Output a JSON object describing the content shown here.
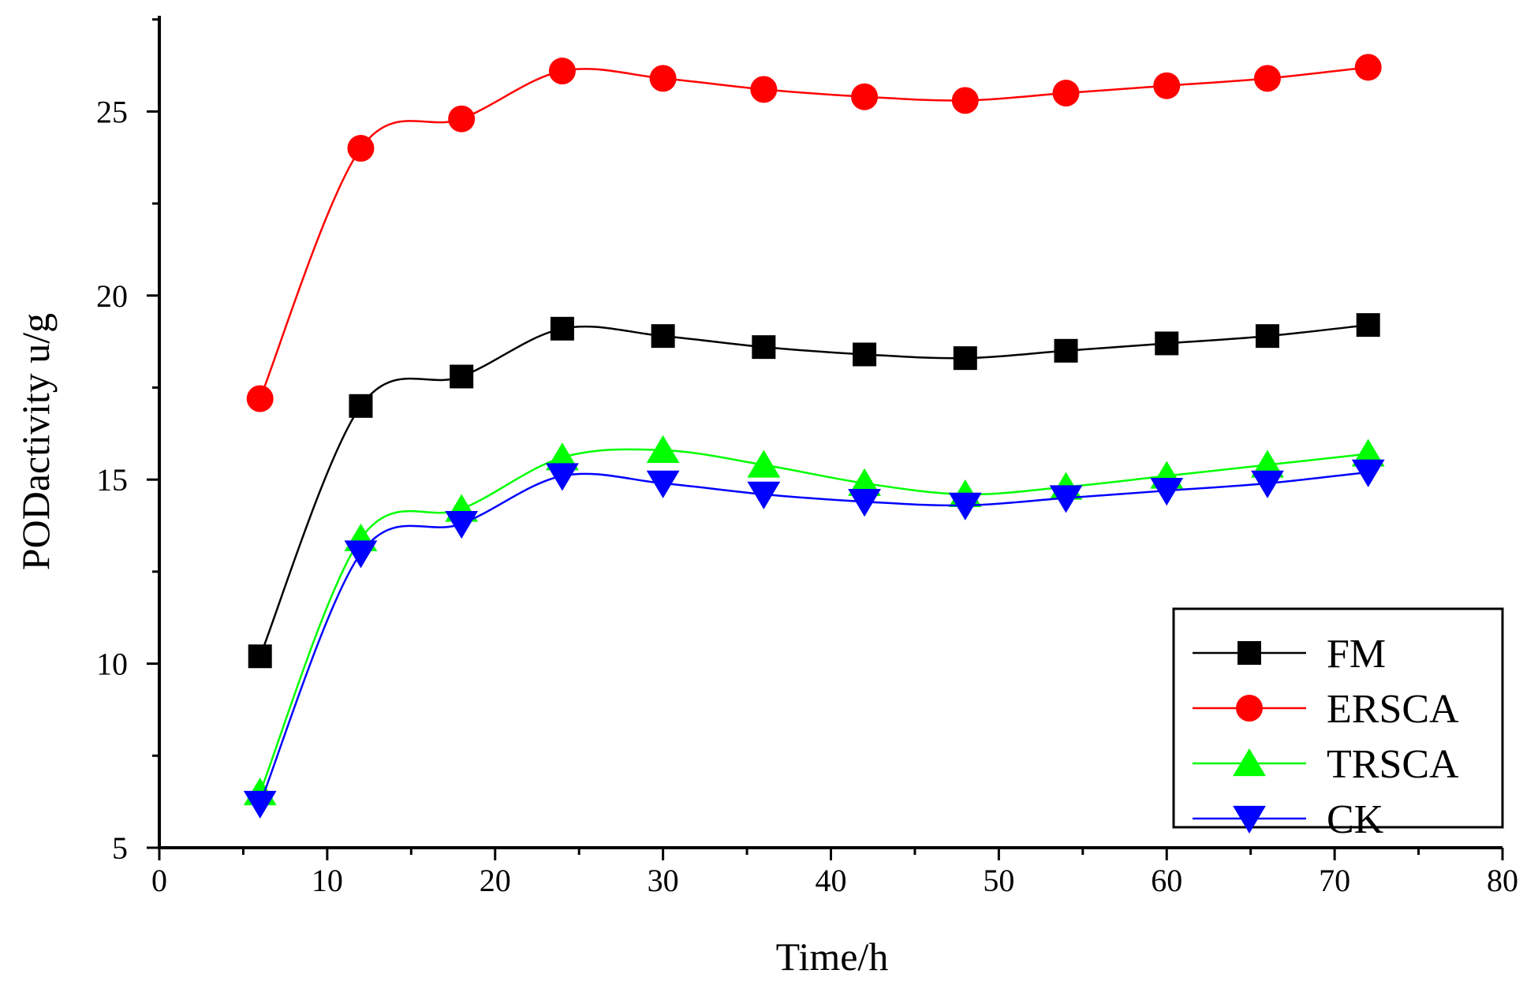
{
  "chart_data": {
    "type": "line",
    "title": "",
    "xlabel": "Time/h",
    "ylabel": "PODactivity u/g",
    "xlim": [
      0,
      80
    ],
    "ylim": [
      5,
      27.6
    ],
    "xticks": [
      "0",
      "10",
      "20",
      "30",
      "40",
      "50",
      "60",
      "70",
      "80"
    ],
    "yticks": [
      "5",
      "10",
      "15",
      "20",
      "25"
    ],
    "grid": false,
    "legend_position": "bottom-right",
    "x": [
      6,
      12,
      18,
      24,
      30,
      36,
      42,
      48,
      54,
      60,
      66,
      72
    ],
    "series": [
      {
        "name": "FM",
        "color": "#000000",
        "marker": "square",
        "values": [
          10.2,
          17.0,
          17.8,
          19.1,
          18.9,
          18.6,
          18.4,
          18.3,
          18.5,
          18.7,
          18.9,
          19.2
        ]
      },
      {
        "name": "ERSCA",
        "color": "#ff0000",
        "marker": "circle",
        "values": [
          17.2,
          24.0,
          24.8,
          26.1,
          25.9,
          25.6,
          25.4,
          25.3,
          25.5,
          25.7,
          25.9,
          26.2
        ]
      },
      {
        "name": "TRSCA",
        "color": "#00ff00",
        "marker": "triangle-up",
        "values": [
          6.5,
          13.4,
          14.2,
          15.6,
          15.8,
          15.4,
          14.9,
          14.6,
          14.8,
          15.1,
          15.4,
          15.7
        ]
      },
      {
        "name": "CK",
        "color": "#0000ff",
        "marker": "triangle-down",
        "values": [
          6.2,
          13.0,
          13.8,
          15.1,
          14.9,
          14.6,
          14.4,
          14.3,
          14.5,
          14.7,
          14.9,
          15.2
        ]
      }
    ]
  }
}
